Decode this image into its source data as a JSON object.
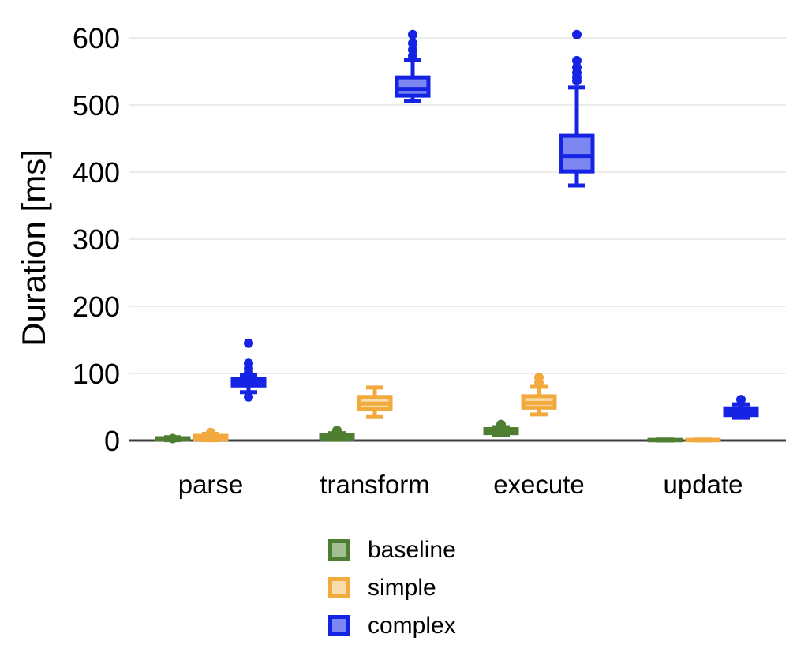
{
  "colors": {
    "background": "#ffffff",
    "axis_line": "#3d3d3d",
    "gridline": "#ececec",
    "text": "#000000",
    "baseline_stroke": "#4e7e31",
    "baseline_fill": "#a3c092",
    "simple_stroke": "#f2a93d",
    "simple_fill": "#f9dcab",
    "complex_stroke": "#1423e4",
    "complex_fill": "#7c87f1"
  },
  "chart_data": {
    "type": "boxplot",
    "title": "",
    "xlabel": "",
    "ylabel": "Duration [ms]",
    "categories": [
      "parse",
      "transform",
      "execute",
      "update"
    ],
    "yticks": [
      0,
      100,
      200,
      300,
      400,
      500,
      600
    ],
    "ylim": [
      0,
      640
    ],
    "grid": true,
    "legend_position": "bottom",
    "legend_entries": [
      "baseline",
      "simple",
      "complex"
    ],
    "series": [
      {
        "name": "baseline",
        "color": "#4e7e31",
        "fill": "#a3c092",
        "boxes": [
          {
            "category": "parse",
            "low": 0.5,
            "q1": 1.5,
            "median": 2.5,
            "q3": 3.5,
            "high": 5,
            "outliers": [
              3
            ]
          },
          {
            "category": "transform",
            "low": 1,
            "q1": 3,
            "median": 5,
            "q3": 8,
            "high": 11,
            "outliers": [
              15
            ]
          },
          {
            "category": "execute",
            "low": 8,
            "q1": 11,
            "median": 14,
            "q3": 17,
            "high": 20,
            "outliers": [
              24
            ]
          },
          {
            "category": "update",
            "low": 0,
            "q1": 0.3,
            "median": 0.6,
            "q3": 1,
            "high": 1.5,
            "outliers": []
          }
        ]
      },
      {
        "name": "simple",
        "color": "#f2a93d",
        "fill": "#f9dcab",
        "boxes": [
          {
            "category": "parse",
            "low": 0.5,
            "q1": 1.5,
            "median": 4,
            "q3": 7,
            "high": 10,
            "outliers": [
              12
            ]
          },
          {
            "category": "transform",
            "low": 35,
            "q1": 47,
            "median": 55,
            "q3": 65,
            "high": 79,
            "outliers": []
          },
          {
            "category": "execute",
            "low": 39,
            "q1": 49,
            "median": 56,
            "q3": 66,
            "high": 80,
            "outliers": [
              86,
              94
            ]
          },
          {
            "category": "update",
            "low": 0,
            "q1": 0.3,
            "median": 0.6,
            "q3": 1,
            "high": 1.5,
            "outliers": []
          }
        ]
      },
      {
        "name": "complex",
        "color": "#1423e4",
        "fill": "#7c87f1",
        "boxes": [
          {
            "category": "parse",
            "low": 72,
            "q1": 82,
            "median": 87,
            "q3": 92,
            "high": 98,
            "outliers": [
              65,
              101,
              107,
              115,
              145
            ]
          },
          {
            "category": "transform",
            "low": 506,
            "q1": 514,
            "median": 524,
            "q3": 541,
            "high": 567,
            "outliers": [
              573,
              582,
              592,
              605
            ]
          },
          {
            "category": "execute",
            "low": 380,
            "q1": 401,
            "median": 424,
            "q3": 454,
            "high": 526,
            "outliers": [
              536,
              541,
              548,
              556,
              566,
              605
            ]
          },
          {
            "category": "update",
            "low": 34,
            "q1": 38,
            "median": 43,
            "q3": 48,
            "high": 54,
            "outliers": [
              61
            ]
          }
        ]
      }
    ]
  }
}
